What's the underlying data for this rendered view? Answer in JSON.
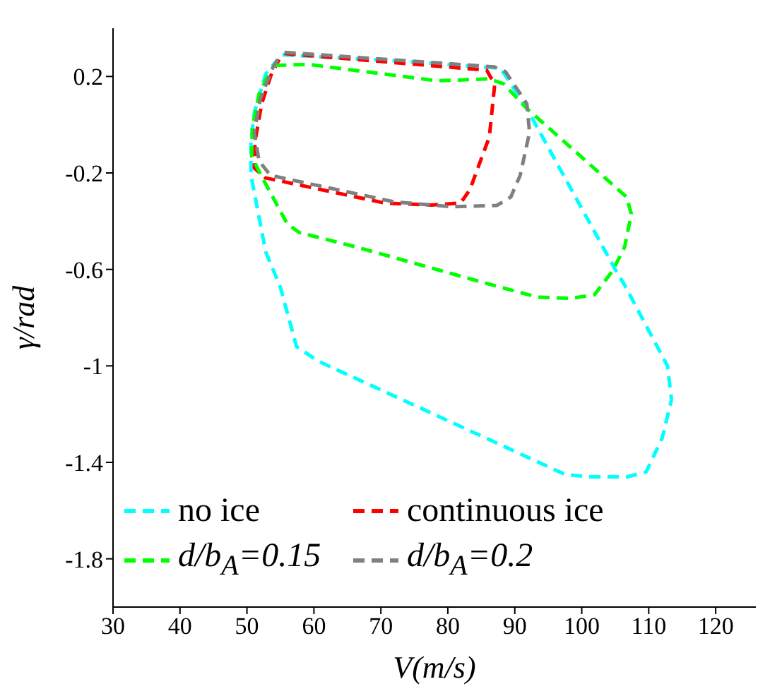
{
  "chart_data": {
    "type": "line",
    "xlabel": "V(m/s)",
    "ylabel": "γ/rad",
    "xlim": [
      30,
      126
    ],
    "ylim": [
      -2.0,
      0.4
    ],
    "xticks": [
      30,
      40,
      50,
      60,
      70,
      80,
      90,
      100,
      110,
      120
    ],
    "yticks": [
      0.2,
      -0.2,
      -0.6,
      -1,
      -1.4,
      -1.8
    ],
    "grid": false,
    "legend": "bottom left",
    "marker": "none",
    "line_style": "dashed",
    "series": [
      {
        "name": "no ice",
        "color": "#00ffff",
        "x": [
          55.3,
          72,
          86.9,
          88.3,
          91.8,
          105,
          106.4,
          112.8,
          113.4,
          112,
          109.6,
          106.8,
          101.1,
          97.5,
          82.6,
          60.6,
          58.5,
          57.4,
          55,
          52.8,
          50.6,
          50.6,
          51.1,
          52.8,
          54.6
        ],
        "values": [
          0.29,
          0.265,
          0.236,
          0.216,
          0.067,
          -0.6,
          -0.665,
          -1.0,
          -1.14,
          -1.3,
          -1.44,
          -1.46,
          -1.46,
          -1.45,
          -1.26,
          -0.98,
          -0.94,
          -0.92,
          -0.675,
          -0.527,
          -0.21,
          -0.07,
          0.05,
          0.21,
          0.27
        ]
      },
      {
        "name": "continuous ice",
        "color": "#ff0000",
        "x": [
          55.6,
          85.8,
          87,
          86.2,
          83.3,
          81.9,
          77.6,
          70.6,
          52.7,
          51.1,
          51.2,
          52.2,
          53.6,
          54.8
        ],
        "values": [
          0.295,
          0.226,
          0.167,
          -0.05,
          -0.269,
          -0.325,
          -0.333,
          -0.325,
          -0.22,
          -0.18,
          -0.07,
          0.087,
          0.206,
          0.27
        ]
      },
      {
        "name": "d/b$_{A}$=0.15",
        "color": "#00ff00",
        "x": [
          54.2,
          59.2,
          78.4,
          86.2,
          88.3,
          91.8,
          106.7,
          107.4,
          106.4,
          104.6,
          101.9,
          98.4,
          93.4,
          85.5,
          66.3,
          57.8,
          56,
          52.1,
          50.7,
          50.8,
          51.8,
          53.4
        ],
        "values": [
          0.246,
          0.25,
          0.182,
          0.19,
          0.17,
          0.067,
          -0.3,
          -0.37,
          -0.507,
          -0.606,
          -0.705,
          -0.72,
          -0.715,
          -0.656,
          -0.507,
          -0.447,
          -0.41,
          -0.21,
          -0.13,
          -0.012,
          0.127,
          0.22
        ]
      },
      {
        "name": "d/b$_{A}$=0.2",
        "color": "#808080",
        "x": [
          55.6,
          86.9,
          88.6,
          91.8,
          92.2,
          90.8,
          89.4,
          87.3,
          80.6,
          72,
          53.5,
          51.8,
          51.1,
          52,
          54,
          55
        ],
        "values": [
          0.3,
          0.24,
          0.22,
          0.087,
          -0.032,
          -0.21,
          -0.3,
          -0.335,
          -0.34,
          -0.32,
          -0.21,
          -0.15,
          -0.032,
          0.107,
          0.246,
          0.285
        ]
      }
    ]
  }
}
